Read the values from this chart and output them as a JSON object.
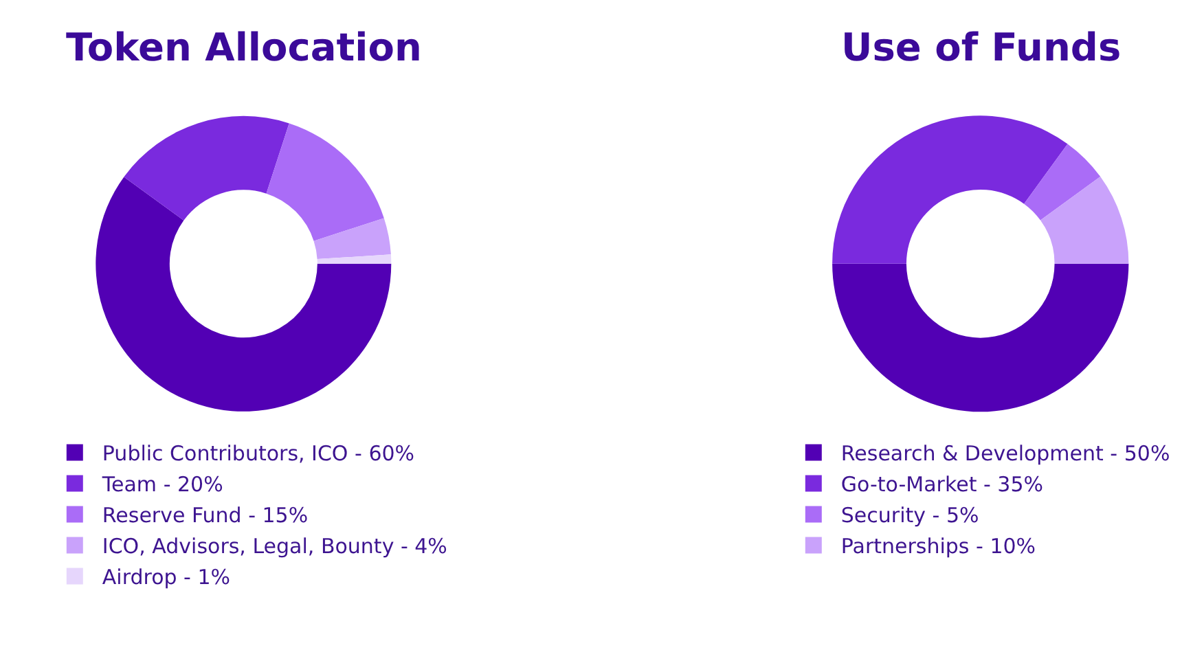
{
  "chart_data": [
    {
      "type": "donut",
      "title": "Token Allocation",
      "categories": [
        "Public Contributors, ICO - 60%",
        "Team - 20%",
        "Reserve Fund - 15%",
        "ICO, Advisors, Legal, Bounty - 4%",
        "Airdrop - 1%"
      ],
      "values": [
        60,
        20,
        15,
        4,
        1
      ],
      "colors": [
        "#5200b4",
        "#7a2ade",
        "#aa6cf7",
        "#c9a2fb",
        "#e6d6fc"
      ],
      "legend": "bottom"
    },
    {
      "type": "donut",
      "title": "Use of Funds",
      "categories": [
        "Research & Development - 50%",
        "Go-to-Market - 35%",
        "Security - 5%",
        "Partnerships - 10%"
      ],
      "values": [
        50,
        35,
        5,
        10
      ],
      "colors": [
        "#5200b4",
        "#7a2ade",
        "#aa6cf7",
        "#c9a2fb"
      ],
      "legend": "bottom"
    }
  ]
}
